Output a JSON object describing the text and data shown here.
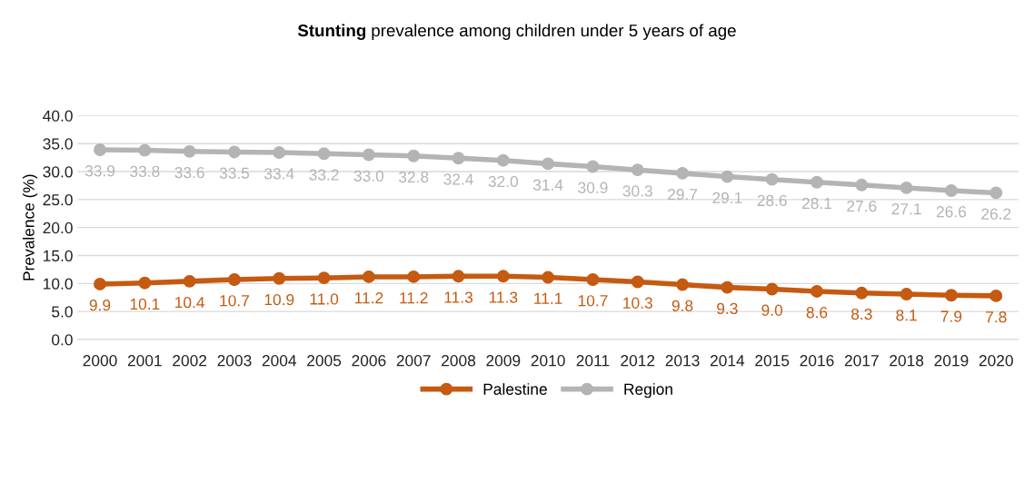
{
  "chart_data": {
    "type": "line",
    "title": "Stunting prevalence among children under 5 years of age",
    "ylabel": "Prevalence (%)",
    "categories": [
      "2000",
      "2001",
      "2002",
      "2003",
      "2004",
      "2005",
      "2006",
      "2007",
      "2008",
      "2009",
      "2010",
      "2011",
      "2012",
      "2013",
      "2014",
      "2015",
      "2016",
      "2017",
      "2018",
      "2019",
      "2020"
    ],
    "series": [
      {
        "name": "Palestine",
        "color": "#c55a11",
        "values": [
          9.9,
          10.1,
          10.4,
          10.7,
          10.9,
          11.0,
          11.2,
          11.2,
          11.3,
          11.3,
          11.1,
          10.7,
          10.3,
          9.8,
          9.3,
          9.0,
          8.6,
          8.3,
          8.1,
          7.9,
          7.8
        ],
        "value_labels": [
          "9.9",
          "10.1",
          "10.4",
          "10.7",
          "10.9",
          "11.0",
          "11.2",
          "11.2",
          "11.3",
          "11.3",
          "11.1",
          "10.7",
          "10.3",
          "9.8",
          "9.3",
          "9.0",
          "8.6",
          "8.3",
          "8.1",
          "7.9",
          "7.8"
        ]
      },
      {
        "name": "Region",
        "color": "#b4b4b4",
        "values": [
          33.9,
          33.8,
          33.6,
          33.5,
          33.4,
          33.2,
          33.0,
          32.8,
          32.4,
          32.0,
          31.4,
          30.9,
          30.3,
          29.7,
          29.1,
          28.6,
          28.1,
          27.6,
          27.1,
          26.6,
          26.2
        ],
        "value_labels": [
          "33.9",
          "33.8",
          "33.6",
          "33.5",
          "33.4",
          "33.2",
          "33.0",
          "32.8",
          "32.4",
          "32.0",
          "31.4",
          "30.9",
          "30.3",
          "29.7",
          "29.1",
          "28.6",
          "28.1",
          "27.6",
          "27.1",
          "26.6",
          "26.2"
        ]
      }
    ],
    "ylim": [
      0,
      40
    ],
    "yticks": [
      {
        "value": 0,
        "label": "0.0"
      },
      {
        "value": 5,
        "label": "5.0"
      },
      {
        "value": 10,
        "label": "10.0"
      },
      {
        "value": 15,
        "label": "15.0"
      },
      {
        "value": 20,
        "label": "20.0"
      },
      {
        "value": 25,
        "label": "25.0"
      },
      {
        "value": 30,
        "label": "30.0"
      },
      {
        "value": 35,
        "label": "35.0"
      },
      {
        "value": 40,
        "label": "40.0"
      }
    ],
    "grid": "y",
    "legend": "bottom",
    "marker": "circle",
    "line_style": "solid"
  }
}
